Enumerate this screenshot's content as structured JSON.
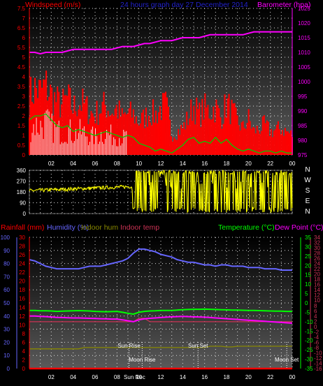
{
  "header": {
    "wind_label": "Windspeed (m/s)",
    "title": "24 hours graph day  27 December 2014",
    "baro_label": "Barometer (hpa)"
  },
  "labels": {
    "rainfall": "Rainfall (mm)",
    "humidity": "Humidity (%)",
    "indoor_hum": "Indoor hum",
    "indoor_temp": "Indoor temp",
    "temperature": "Temperature (°C)",
    "dew_point": "Dew Point (°C)"
  },
  "colors": {
    "wind": "#ff0000",
    "gust": "#ffffff",
    "avg_wind": "#00cc00",
    "barometer": "#ff00ff",
    "direction": "#ffff00",
    "temperature": "#00ff00",
    "dew_point": "#ff00ff",
    "humidity": "#6666ff",
    "indoor_hum": "#888800",
    "indoor_temp": "#cc3355",
    "rain": "#ff0000",
    "title": "#2222cc"
  },
  "chart_data": [
    {
      "type": "area",
      "name": "wind_baro",
      "x_ticks": [
        "02",
        "04",
        "06",
        "08",
        "10",
        "12",
        "14",
        "16",
        "18",
        "20",
        "22",
        "00"
      ],
      "wind_axis": {
        "ylim": [
          0,
          7.5
        ],
        "ticks": [
          "0",
          "0.5",
          "1",
          "1.5",
          "2",
          "2.5",
          "3",
          "3.5",
          "4",
          "4.5",
          "5",
          "5.5",
          "6",
          "6.5",
          "7",
          "7.5"
        ]
      },
      "baro_axis": {
        "ylim": [
          975,
          1025
        ],
        "ticks": [
          "975",
          "980",
          "985",
          "990",
          "995",
          "1000",
          "1005",
          "1010",
          "1015",
          "1020",
          "1025"
        ]
      },
      "barometer": [
        1010,
        1010,
        1009.5,
        1010,
        1010,
        1010,
        1010,
        1010.5,
        1011,
        1011,
        1011,
        1011,
        1011,
        1011,
        1011,
        1011,
        1011.5,
        1012,
        1012,
        1012,
        1012.5,
        1013,
        1013,
        1013.5,
        1014,
        1014,
        1014,
        1014.5,
        1015,
        1015,
        1015,
        1015,
        1015.5,
        1016,
        1016,
        1016,
        1016,
        1016,
        1016,
        1016,
        1016.5,
        1017,
        1017,
        1017,
        1017,
        1017,
        1017,
        1017,
        1017
      ],
      "wind_gust": [
        3.5,
        4,
        3.8,
        4.2,
        3.6,
        3.2,
        3,
        3.4,
        2.8,
        3.2,
        3,
        2.6,
        2.4,
        2.8,
        3,
        2.6,
        2.8,
        2.2,
        2.5,
        2.4,
        2,
        2.2,
        2.6,
        2.4,
        2.8,
        3,
        1.2,
        1.4,
        1.6,
        2.2,
        3,
        2.4,
        2.8,
        2.6,
        2.9,
        2.2,
        3.1,
        2.6,
        2,
        1.6,
        2.2,
        1.4,
        1.6,
        1.8,
        1.4,
        1.5,
        1.6,
        1.4,
        1.2
      ],
      "wind_speed": [
        2,
        2.2,
        2.1,
        2.4,
        2,
        1.8,
        1.6,
        1.9,
        1.5,
        1.7,
        1.6,
        1.4,
        1.3,
        1.5,
        1.6,
        1.4,
        1.5,
        1.2,
        1.4,
        1.3,
        1,
        1.2,
        1.4,
        1.3,
        1.5,
        1.6,
        0.4,
        0.6,
        0.8,
        1.2,
        1.6,
        1.2,
        1.5,
        1.4,
        1.6,
        1.1,
        1.7,
        1.4,
        1,
        0.8,
        1.2,
        0.6,
        0.7,
        0.9,
        0.6,
        0.7,
        0.8,
        0.6,
        0.5
      ],
      "wind_avg": [
        1.8,
        2,
        2,
        2.1,
        1.8,
        1.5,
        1.4,
        1.5,
        1.2,
        1.3,
        1.2,
        1.1,
        1,
        1.1,
        1.2,
        1.1,
        1,
        0.9,
        1,
        0.9,
        0.6,
        0.5,
        0.4,
        0.2,
        0.3,
        0.2,
        0.1,
        0.3,
        0.5,
        0.8,
        0.9,
        0.6,
        0.7,
        0.6,
        0.9,
        0.6,
        0.8,
        0.5,
        0.3,
        0.2,
        0.3,
        0.2,
        0.1,
        0.2,
        0.2,
        0.1,
        0.2,
        0.1,
        0.1
      ]
    },
    {
      "type": "line",
      "name": "wind_direction",
      "y_ticks": [
        "0",
        "90",
        "180",
        "270",
        "360"
      ],
      "compass": [
        "N",
        "W",
        "S",
        "E",
        "N"
      ],
      "ylim": [
        0,
        360
      ]
    },
    {
      "type": "line",
      "name": "temperature_humidity",
      "humidity_axis": {
        "ylim": [
          0,
          100
        ],
        "ticks": [
          "0",
          "10",
          "20",
          "30",
          "40",
          "50",
          "60",
          "70",
          "80",
          "90",
          "100"
        ]
      },
      "rain_axis": {
        "ylim": [
          0,
          30
        ],
        "ticks": [
          "0",
          "2",
          "4",
          "6",
          "8",
          "10",
          "12",
          "14",
          "16",
          "18",
          "20",
          "22",
          "24",
          "26",
          "28",
          "30"
        ]
      },
      "temp_axis": {
        "ylim": [
          -35,
          35
        ],
        "ticks": [
          "-35",
          "-30",
          "-25",
          "-20",
          "-15",
          "-10",
          "-5",
          "0",
          "5",
          "10",
          "15",
          "20",
          "25",
          "30",
          "35"
        ]
      },
      "indoor_axis": {
        "ticks": [
          "-16",
          "-14",
          "-12",
          "-10",
          "-8",
          "-6",
          "-4",
          "-2",
          "0",
          "2",
          "4",
          "6",
          "8",
          "10",
          "12",
          "14",
          "16",
          "18",
          "20",
          "22",
          "24",
          "26",
          "28",
          "30",
          "32",
          "34"
        ]
      },
      "humidity": [
        83,
        82,
        80,
        78,
        77,
        76,
        76,
        76,
        76,
        76,
        77,
        78,
        78,
        78,
        79,
        80,
        81,
        82,
        84,
        88,
        91,
        91,
        90,
        89,
        87,
        86,
        85,
        83,
        82,
        81,
        81,
        80,
        79,
        79,
        78,
        79,
        79,
        78,
        78,
        78,
        77,
        77,
        77,
        76,
        76,
        76,
        75,
        75,
        75
      ],
      "temperature": [
        -4,
        -4,
        -4.2,
        -4.2,
        -4.3,
        -4.5,
        -4.4,
        -4.3,
        -4.2,
        -4.1,
        -4.2,
        -4.3,
        -4.5,
        -4.6,
        -4.7,
        -4.6,
        -4.5,
        -5,
        -5.5,
        -6,
        -5,
        -4.5,
        -4.3,
        -4.2,
        -4,
        -4,
        -4,
        -3.8,
        -3.6,
        -3.5,
        -3.4,
        -3.4,
        -3.3,
        -3.4,
        -3.5,
        -3.6,
        -3.7,
        -3.8,
        -3.8,
        -3.9,
        -4,
        -4,
        -4.1,
        -4.2,
        -4.3,
        -4.4,
        -4.4,
        -4.5,
        -4.5
      ],
      "dew_point": [
        -7,
        -7,
        -7.2,
        -7.3,
        -7.5,
        -7.7,
        -7.8,
        -7.9,
        -8,
        -8,
        -8.1,
        -8.2,
        -8.3,
        -8.4,
        -8.5,
        -8.6,
        -8.6,
        -9,
        -9.5,
        -10,
        -9,
        -8.5,
        -8.2,
        -8,
        -7.8,
        -7.6,
        -7.4,
        -7.3,
        -7.2,
        -7.3,
        -7.4,
        -7.5,
        -7.6,
        -7.8,
        -8,
        -8.2,
        -8.4,
        -8.6,
        -8.8,
        -9,
        -9.2,
        -9.4,
        -9.6,
        -9.8,
        -10,
        -10.2,
        -10.4,
        -10.6,
        -10.8
      ],
      "indoor_hum": [
        15,
        15,
        15,
        15,
        15,
        15,
        15,
        15,
        15,
        15,
        16,
        16,
        16,
        16,
        16,
        16,
        16,
        16,
        16,
        16,
        16,
        16,
        16,
        16,
        16,
        16,
        16,
        16,
        16,
        16,
        16,
        16,
        16,
        17,
        17,
        17,
        16.5,
        16.5,
        17,
        17,
        17,
        17,
        17,
        17,
        17,
        17,
        17,
        17,
        17
      ],
      "indoor_temp": [
        14,
        14,
        14,
        14,
        14,
        14,
        14,
        14,
        14,
        14,
        14,
        14,
        14,
        14,
        14,
        14,
        14,
        14,
        14,
        14,
        15,
        15,
        14,
        14,
        14,
        14,
        14,
        14,
        14,
        14,
        14,
        14,
        14,
        14,
        14,
        14,
        14,
        14,
        14,
        14,
        14,
        14,
        14,
        14,
        14,
        14,
        14,
        14,
        14
      ],
      "rain": [
        0,
        0,
        0,
        0,
        0,
        0,
        0,
        0,
        0,
        0,
        0,
        0,
        0,
        0,
        0,
        0,
        0,
        0,
        0,
        0,
        0,
        0,
        0,
        0,
        0,
        0,
        0,
        0,
        0,
        0,
        0,
        0,
        0,
        0,
        0,
        0,
        0,
        0,
        0,
        0,
        0,
        0,
        0,
        0,
        0,
        0,
        0,
        0,
        0
      ],
      "x_ticks": [
        "02",
        "04",
        "06",
        "08",
        "10",
        "12",
        "14",
        "16",
        "18",
        "20",
        "22",
        "00"
      ],
      "events": [
        {
          "label": "Sun Rise",
          "hour": 9.1
        },
        {
          "label": "Sun Set",
          "hour": 15.4
        },
        {
          "label": "Moon Rise",
          "hour": 10.3
        },
        {
          "label": "Moon Set",
          "hour": 23.5
        },
        {
          "label": "Sun Rec",
          "hour": 9.6
        }
      ]
    }
  ]
}
